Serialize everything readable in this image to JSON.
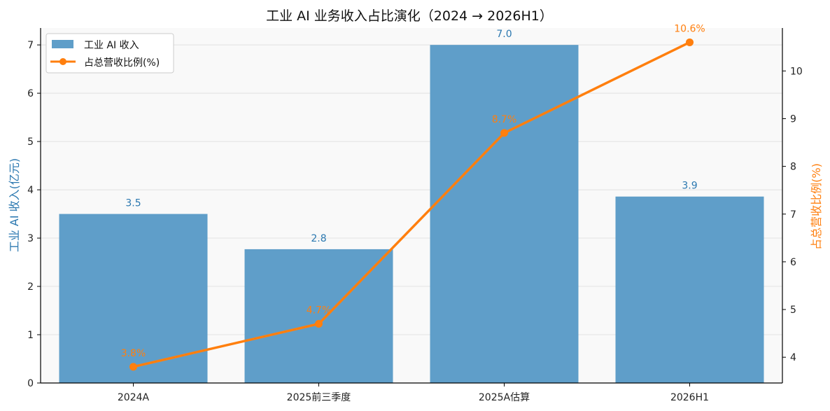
{
  "chart_data": {
    "type": "bar+line",
    "title": "工业 AI 业务收入占比演化（2024 → 2026H1）",
    "categories": [
      "2024A",
      "2025前三季度",
      "2025A估算",
      "2026H1"
    ],
    "series": [
      {
        "name": "工业 AI 收入",
        "type": "bar",
        "axis": "left",
        "color": "#5f9ec9",
        "label_color": "#2b78b0",
        "values": [
          3.5,
          2.77,
          7.0,
          3.86
        ],
        "labels": [
          "3.5",
          "2.8",
          "7.0",
          "3.9"
        ]
      },
      {
        "name": "占总营收比例(%)",
        "type": "line",
        "axis": "right",
        "color": "#ff7f0e",
        "values": [
          3.8,
          4.7,
          8.7,
          10.6
        ],
        "labels": [
          "3.8%",
          "4.7%",
          "8.7%",
          "10.6%"
        ]
      }
    ],
    "ylabel_left": "工业 AI 收入(亿元)",
    "ylabel_right": "占总营收比例(%)",
    "ylim_left": [
      0,
      7.35
    ],
    "ylim_right": [
      3.46,
      10.9
    ],
    "yticks_left": [
      0,
      1,
      2,
      3,
      4,
      5,
      6,
      7
    ],
    "yticks_right": [
      4,
      5,
      6,
      7,
      8,
      9,
      10
    ],
    "grid": "horizontal",
    "legend": "top-left"
  }
}
